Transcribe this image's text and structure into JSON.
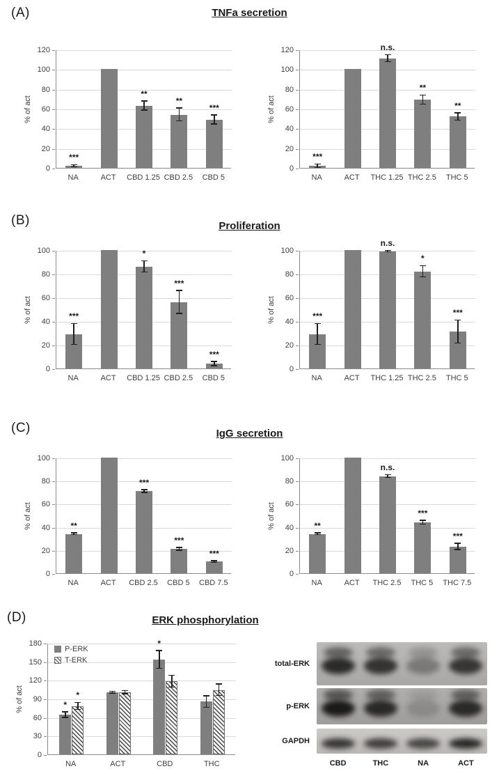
{
  "figure": {
    "panels": [
      {
        "label": "(A)",
        "title": "TNFa secretion"
      },
      {
        "label": "(B)",
        "title": "Proliferation"
      },
      {
        "label": "(C)",
        "title": "IgG secretion"
      },
      {
        "label": "(D)",
        "title": "ERK phosphorylation"
      }
    ]
  },
  "chart_data": [
    {
      "type": "bar",
      "panel": "A",
      "title": "TNFa secretion",
      "ylabel": "% of act",
      "ylim": [
        0,
        120
      ],
      "ytick_step": 20,
      "grid": true,
      "categories": [
        "NA",
        "ACT",
        "CBD 1.25",
        "CBD 2.5",
        "CBD 5"
      ],
      "values": [
        2,
        100,
        63,
        54,
        49
      ],
      "errors": [
        1.5,
        0,
        5,
        7,
        5
      ],
      "sig": [
        "***",
        "",
        "**",
        "**",
        "***"
      ]
    },
    {
      "type": "bar",
      "panel": "A",
      "title": "TNFa secretion",
      "ylabel": "% of act",
      "ylim": [
        0,
        120
      ],
      "ytick_step": 20,
      "grid": true,
      "categories": [
        "NA",
        "ACT",
        "THC 1.25",
        "THC 2.5",
        "THC 5"
      ],
      "values": [
        2,
        100,
        111,
        69,
        52
      ],
      "errors": [
        2,
        0,
        4,
        5,
        4
      ],
      "sig": [
        "***",
        "",
        "n.s.",
        "**",
        "**"
      ]
    },
    {
      "type": "bar",
      "panel": "B",
      "title": "Proliferation",
      "ylabel": "% of act",
      "ylim": [
        0,
        100
      ],
      "ytick_step": 20,
      "grid": true,
      "categories": [
        "NA",
        "ACT",
        "CBD 1.25",
        "CBD 2.5",
        "CBD 5"
      ],
      "values": [
        29,
        100,
        86,
        56,
        4
      ],
      "errors": [
        9,
        0,
        5,
        10,
        2
      ],
      "sig": [
        "***",
        "",
        "*",
        "***",
        "***"
      ]
    },
    {
      "type": "bar",
      "panel": "B",
      "title": "Proliferation",
      "ylabel": "% of act",
      "ylim": [
        0,
        100
      ],
      "ytick_step": 20,
      "grid": true,
      "categories": [
        "NA",
        "ACT",
        "THC 1.25",
        "THC 2.5",
        "THC 5"
      ],
      "values": [
        29,
        100,
        99,
        82,
        31
      ],
      "errors": [
        9,
        0,
        1,
        5,
        10
      ],
      "sig": [
        "***",
        "",
        "n.s.",
        "*",
        "***"
      ]
    },
    {
      "type": "bar",
      "panel": "C",
      "title": "IgG secretion",
      "ylabel": "% of act",
      "ylim": [
        0,
        100
      ],
      "ytick_step": 20,
      "grid": true,
      "categories": [
        "NA",
        "ACT",
        "CBD 2.5",
        "CBD 5",
        "CBD 7.5"
      ],
      "values": [
        34,
        100,
        71,
        21,
        10
      ],
      "errors": [
        1,
        0,
        1.5,
        1.5,
        1
      ],
      "sig": [
        "**",
        "",
        "***",
        "***",
        "***"
      ]
    },
    {
      "type": "bar",
      "panel": "C",
      "title": "IgG secretion",
      "ylabel": "% of act",
      "ylim": [
        0,
        100
      ],
      "ytick_step": 20,
      "grid": true,
      "categories": [
        "NA",
        "ACT",
        "THC 2.5",
        "THC 5",
        "THC 7.5"
      ],
      "values": [
        34,
        100,
        84,
        44,
        23
      ],
      "errors": [
        1,
        0,
        1.5,
        2,
        3
      ],
      "sig": [
        "**",
        "",
        "n.s.",
        "***",
        "***"
      ]
    },
    {
      "type": "bar",
      "panel": "D",
      "title": "ERK phosphorylation",
      "ylabel": "% of act",
      "ylim": [
        0,
        180
      ],
      "ytick_step": 30,
      "grid": true,
      "legend_position": "top-left",
      "categories": [
        "NA",
        "ACT",
        "CBD",
        "THC"
      ],
      "series": [
        {
          "name": "P-ERK",
          "style": "solid",
          "values": [
            64,
            100,
            153,
            85
          ],
          "errors": [
            5,
            2,
            15,
            10
          ],
          "sig": [
            "*",
            "",
            "*",
            ""
          ]
        },
        {
          "name": "T-ERK",
          "style": "hatched",
          "values": [
            78,
            100,
            118,
            104
          ],
          "errors": [
            6,
            3,
            10,
            10
          ],
          "sig": [
            "*",
            "",
            "",
            ""
          ]
        }
      ]
    }
  ],
  "blot": {
    "rows": [
      {
        "label": "total-ERK",
        "intensities": [
          0.85,
          0.8,
          0.35,
          0.78
        ]
      },
      {
        "label": "p-ERK",
        "intensities": [
          0.95,
          0.85,
          0.18,
          0.85
        ]
      },
      {
        "label": "GAPDH",
        "intensities": [
          0.8,
          0.75,
          0.7,
          0.88
        ]
      }
    ],
    "lanes": [
      "CBD",
      "THC",
      "NA",
      "ACT"
    ]
  },
  "colors": {
    "bar": "#7f7f7f",
    "grid": "#d9d9d9",
    "axis": "#8a8a8a",
    "error_bar": "#1f1f1f"
  }
}
